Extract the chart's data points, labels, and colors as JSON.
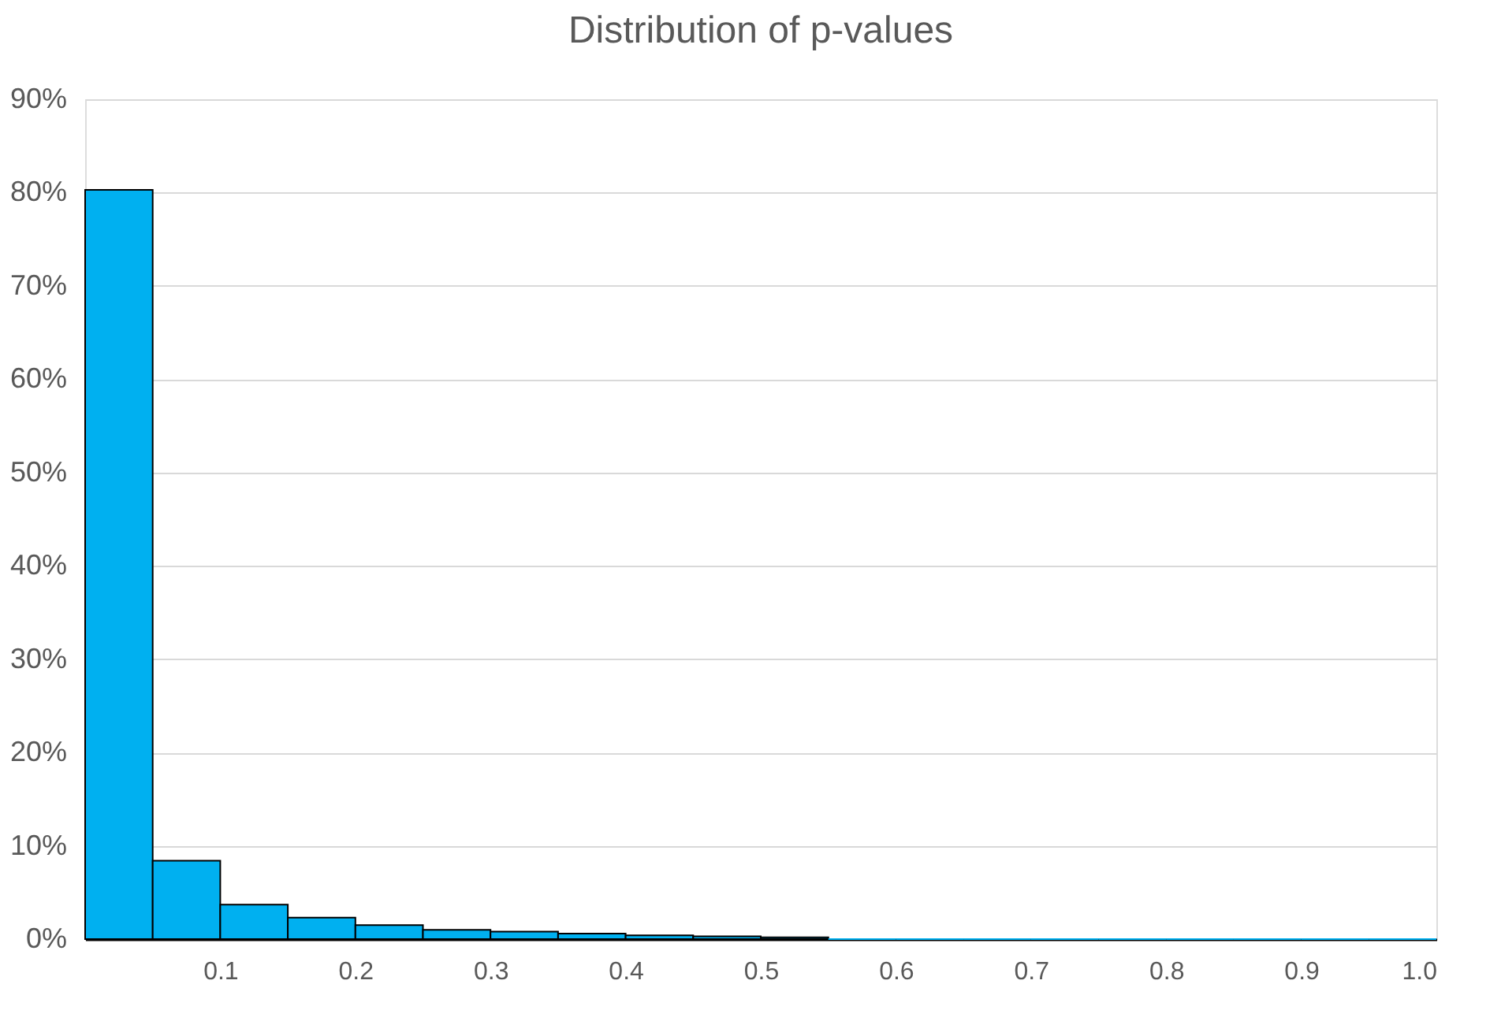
{
  "chart_data": {
    "type": "histogram",
    "title": "Distribution of p-values",
    "bins": [
      0,
      0.05,
      0.1,
      0.15,
      0.2,
      0.25,
      0.3,
      0.35,
      0.4,
      0.45,
      0.5,
      0.55,
      0.6,
      0.65,
      0.7,
      0.75,
      0.8,
      0.85,
      0.9,
      0.95,
      1.0
    ],
    "values": [
      80.3,
      8.4,
      3.7,
      2.3,
      1.5,
      1.0,
      0.8,
      0.6,
      0.4,
      0.3,
      0.2,
      0,
      0,
      0,
      0,
      0,
      0,
      0,
      0,
      0
    ],
    "color": "#00b0f0",
    "xlim": [
      0,
      1.0
    ],
    "xticks": [
      0.1,
      0.2,
      0.3,
      0.4,
      0.5,
      0.6,
      0.7,
      0.8,
      0.9,
      {
        "value": 1.0,
        "label": "1.0"
      }
    ],
    "ylim": [
      0,
      90
    ],
    "yticks": [
      {
        "value": 0,
        "label": "0%"
      },
      {
        "value": 10,
        "label": "10%"
      },
      {
        "value": 20,
        "label": "20%"
      },
      {
        "value": 30,
        "label": "30%"
      },
      {
        "value": 40,
        "label": "40%"
      },
      {
        "value": 50,
        "label": "50%"
      },
      {
        "value": 60,
        "label": "60%"
      },
      {
        "value": 70,
        "label": "70%"
      },
      {
        "value": 80,
        "label": "80%"
      },
      {
        "value": 90,
        "label": "90%"
      }
    ],
    "grid": "y"
  }
}
